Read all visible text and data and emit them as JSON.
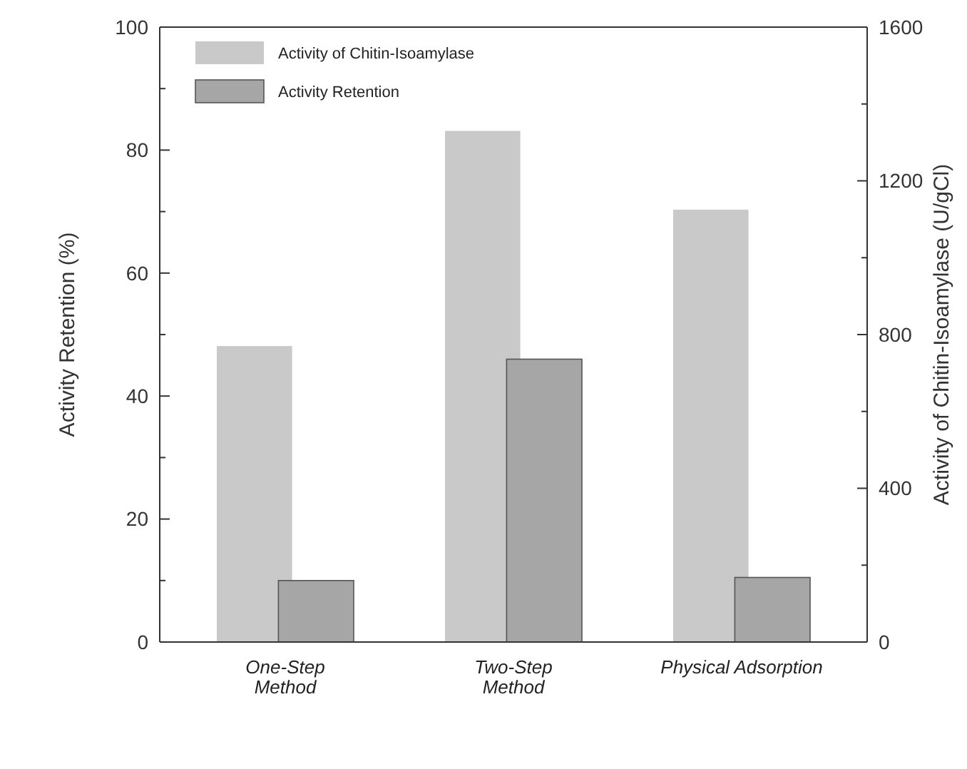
{
  "chart_data": {
    "type": "bar",
    "categories": [
      "One-Step\nMethod",
      "Two-Step\nMethod",
      "Physical Adsorption"
    ],
    "ylabel": "Activity Retention (%)",
    "y2label": "Activity of Chitin-Isoamylase (U/gCl)",
    "ylim": [
      0,
      100
    ],
    "yticks": [
      0,
      {
        "value": 10,
        "label": null
      },
      20,
      {
        "value": 30,
        "label": null
      },
      40,
      {
        "value": 50,
        "label": null
      },
      60,
      {
        "value": 70,
        "label": null
      },
      80,
      {
        "value": 90,
        "label": null
      },
      100
    ],
    "y2lim": [
      0,
      1600
    ],
    "y2ticks": [
      0,
      {
        "value": 200,
        "label": null
      },
      400,
      {
        "value": 600,
        "label": null
      },
      800,
      {
        "value": 1000,
        "label": null
      },
      1200,
      {
        "value": 1400,
        "label": null
      },
      1600
    ],
    "series": [
      {
        "name": "Activity of Chitin-Isoamylase",
        "color": "#c9c9c9",
        "values": [
          770,
          1330,
          1125
        ],
        "axis": "y2"
      },
      {
        "name": "Activity Retention",
        "color": "#a6a6a6",
        "values": [
          10,
          46,
          10.5
        ]
      }
    ],
    "legend": "top left"
  }
}
